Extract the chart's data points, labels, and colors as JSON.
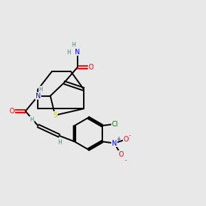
{
  "bg_color": "#e8e8e8",
  "atom_colors": {
    "C": "#000000",
    "N": "#0000ff",
    "O": "#ff0000",
    "S": "#cccc00",
    "Cl": "#008000",
    "H": "#408080"
  },
  "bond_color": "#000000"
}
